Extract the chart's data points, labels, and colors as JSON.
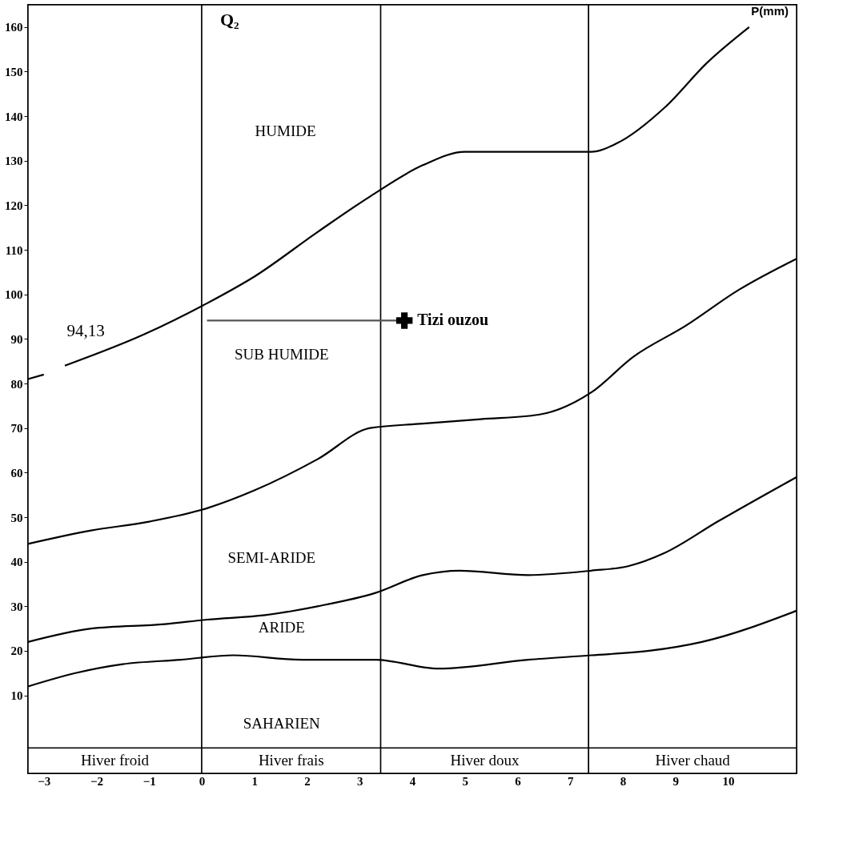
{
  "chart_data": {
    "type": "line",
    "xlabel": "P(mm)",
    "ylabel": "Q₂",
    "xlim": [
      -3.3,
      11.3
    ],
    "ylim": [
      -7.5,
      165
    ],
    "xticks": [
      -3,
      -2,
      -1,
      0,
      1,
      2,
      3,
      4,
      5,
      6,
      7,
      8,
      9,
      10
    ],
    "yticks": [
      10,
      20,
      30,
      40,
      50,
      60,
      70,
      80,
      90,
      100,
      110,
      120,
      130,
      140,
      150,
      160
    ],
    "grid": false,
    "marker": "none",
    "line_style": "solid",
    "series": [
      {
        "color": "#000000",
        "x": [
          -3.3,
          -3.0,
          -2.8,
          -2.6,
          -1.1,
          0.1,
          1.0,
          2.2,
          3.2,
          4.2,
          5.0,
          6.2,
          7.4,
          7.9,
          8.8,
          9.6,
          10.4
        ],
        "values": [
          81,
          82,
          null,
          84,
          91,
          98,
          104,
          114,
          122,
          129,
          132,
          132,
          132,
          134,
          142,
          152,
          160
        ]
      },
      {
        "color": "#000000",
        "x": [
          -3.3,
          -2.1,
          -1.0,
          0.1,
          1.0,
          2.2,
          3.2,
          4.2,
          5.3,
          6.4,
          7.4,
          8.2,
          9.2,
          10.2,
          11.3
        ],
        "values": [
          44,
          47,
          49,
          52,
          56,
          63,
          70,
          71,
          72,
          73,
          78,
          86,
          93,
          101,
          108
        ]
      },
      {
        "color": "#000000",
        "x": [
          -3.3,
          -2.1,
          -0.7,
          0.1,
          1.2,
          2.2,
          3.3,
          4.2,
          4.9,
          6.2,
          7.4,
          8.1,
          8.8,
          9.8,
          11.3
        ],
        "values": [
          22,
          25,
          26,
          27,
          28,
          30,
          33,
          37,
          38,
          37,
          38,
          39,
          42,
          49,
          59
        ]
      },
      {
        "color": "#000000",
        "x": [
          -3.3,
          -2.4,
          -1.5,
          -0.4,
          0.6,
          1.9,
          3.3,
          4.5,
          6.2,
          7.4,
          8.5,
          9.5,
          11.3
        ],
        "values": [
          12,
          15,
          17,
          18,
          19,
          18,
          18,
          16,
          18,
          19,
          20,
          22,
          29
        ]
      },
      {
        "color": "#555555",
        "x": [
          0.1,
          3.85
        ],
        "values": [
          94.13,
          94.13
        ]
      },
      {
        "type": "scatter",
        "name": "Tizi ouzou",
        "marker": "cross",
        "color": "#000000",
        "x": [
          3.85
        ],
        "values": [
          94.13
        ]
      }
    ],
    "bands": [
      {
        "axis": "x",
        "from": -3.3,
        "to": 0,
        "label": "Hiver froid",
        "color": "#ffffff"
      },
      {
        "axis": "x",
        "from": 0,
        "to": 3.4,
        "label": "Hiver frais",
        "color": "#ffffff"
      },
      {
        "axis": "x",
        "from": 3.4,
        "to": 7.35,
        "label": "Hiver doux",
        "color": "#ffffff"
      },
      {
        "axis": "x",
        "from": 7.35,
        "to": 11.3,
        "label": "Hiver chaud",
        "color": "#ffffff"
      }
    ],
    "ref_lines": [
      {
        "axis": "y",
        "value": -1.8,
        "color": "#000000"
      }
    ],
    "annotations": [
      "94,13",
      "HUMIDE",
      "SUB HUMIDE",
      "SEMI-ARIDE",
      "ARIDE",
      "SAHARIEN"
    ]
  }
}
